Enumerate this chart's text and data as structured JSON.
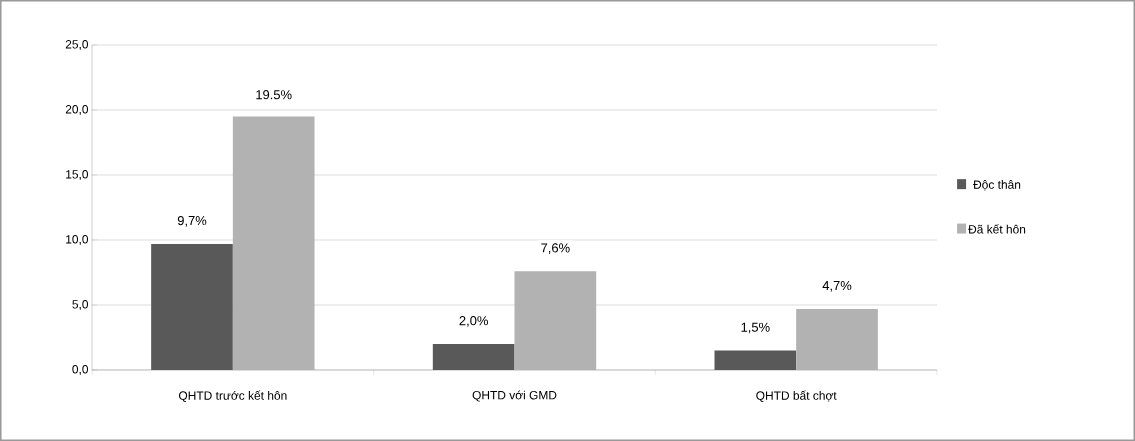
{
  "chart_data": {
    "type": "bar",
    "categories": [
      "QHTD trước kết hôn",
      "QHTD với GMD",
      "QHTD bất chợt"
    ],
    "series": [
      {
        "name": "Độc thân",
        "color": "#595959",
        "values": [
          9.7,
          2.0,
          1.5
        ],
        "value_labels": [
          "9,7%",
          "2,0%",
          "1,5%"
        ]
      },
      {
        "name": "Đã kết hôn",
        "color": "#b2b2b2",
        "values": [
          19.5,
          7.6,
          4.7
        ],
        "value_labels": [
          "19.5%",
          "7,6%",
          "4,7%"
        ]
      }
    ],
    "ylim": [
      0,
      25
    ],
    "yticks": [
      {
        "value": 0,
        "label": "0,0"
      },
      {
        "value": 5,
        "label": "5,0"
      },
      {
        "value": 10,
        "label": "10,0"
      },
      {
        "value": 15,
        "label": "15,0"
      },
      {
        "value": 20,
        "label": "20,0"
      },
      {
        "value": 25,
        "label": "25,0"
      }
    ],
    "grid": "y",
    "legend": "right"
  }
}
